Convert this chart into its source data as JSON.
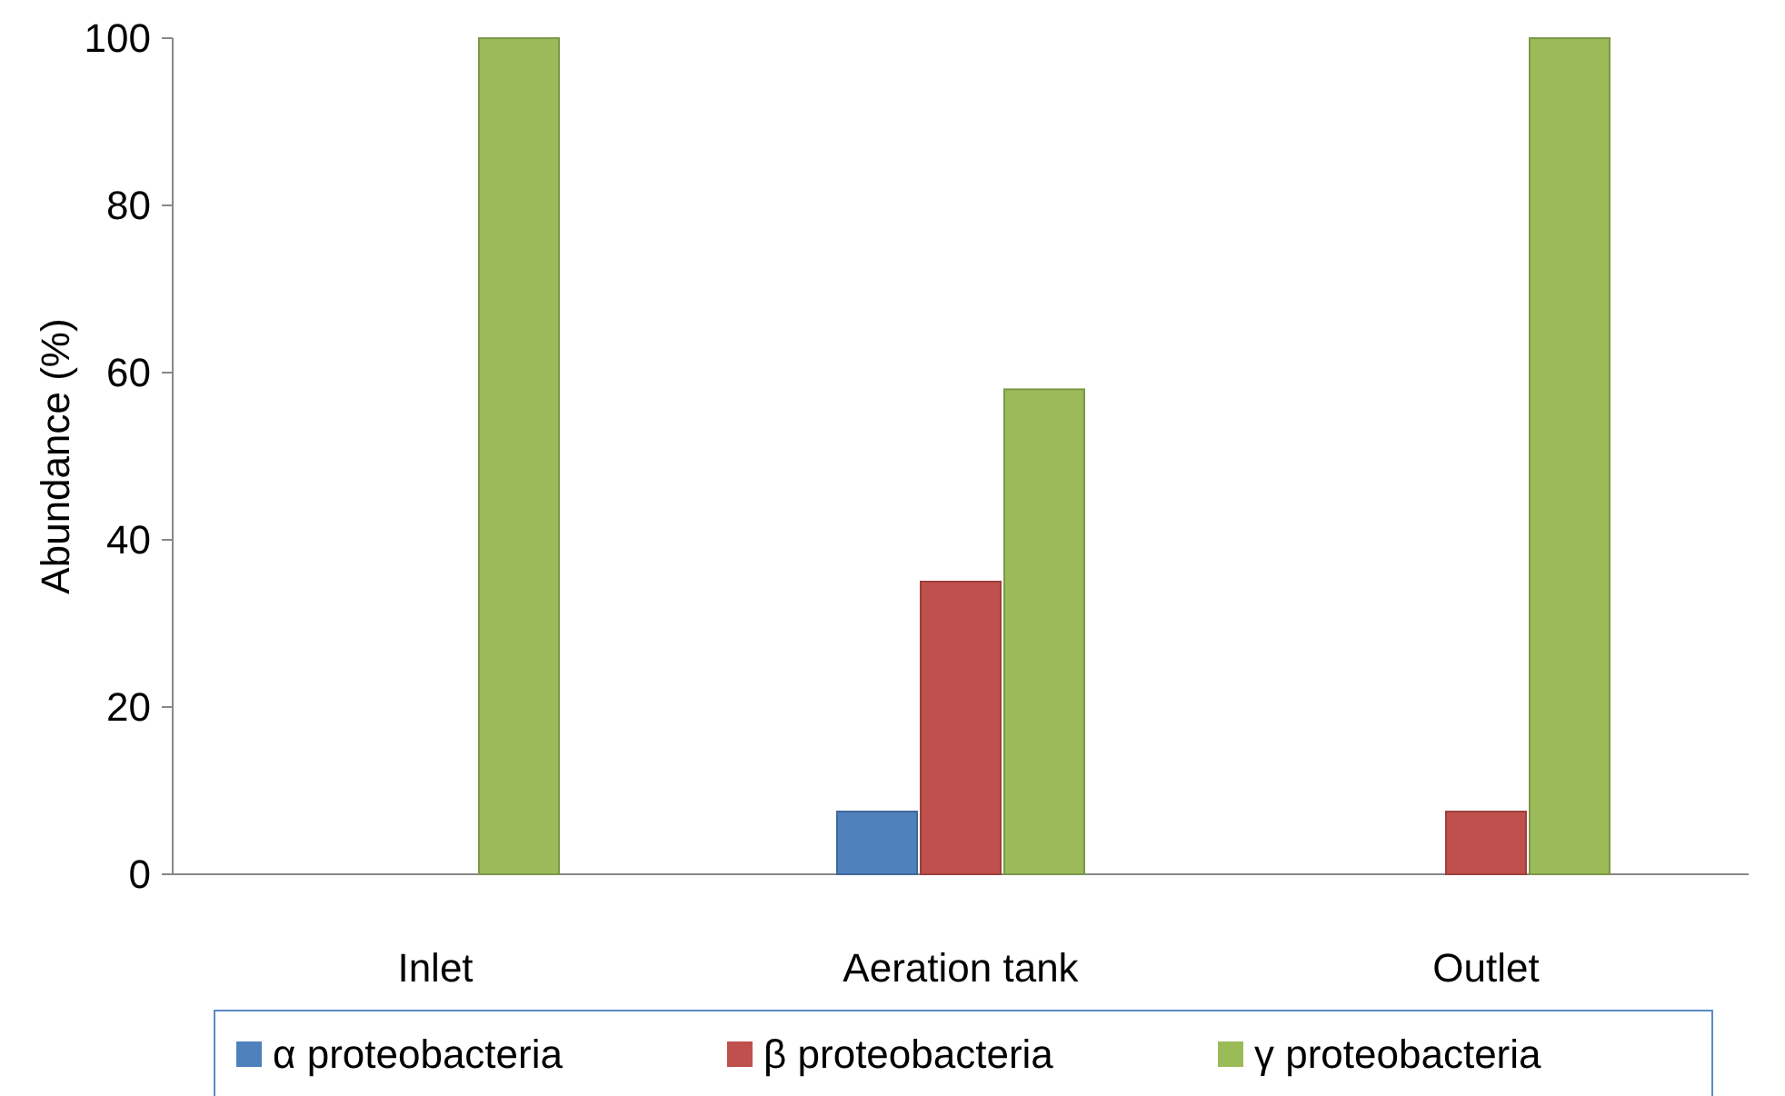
{
  "chart_data": {
    "type": "bar",
    "ylabel": "Abundance (%)",
    "categories": [
      "Inlet",
      "Aeration tank",
      "Outlet"
    ],
    "series": [
      {
        "name": "α proteobacteria",
        "color": "#4f81bd",
        "values": [
          null,
          7.5,
          null
        ]
      },
      {
        "name": "β proteobacteria",
        "color": "#c0504d",
        "values": [
          null,
          35,
          7.5
        ]
      },
      {
        "name": "γ proteobacteria",
        "color": "#9bbb59",
        "values": [
          100,
          58,
          100
        ]
      }
    ],
    "ylim": [
      0,
      100
    ],
    "yticks": [
      0,
      20,
      40,
      60,
      80,
      100
    ],
    "grid": false,
    "legend": "bottom"
  }
}
